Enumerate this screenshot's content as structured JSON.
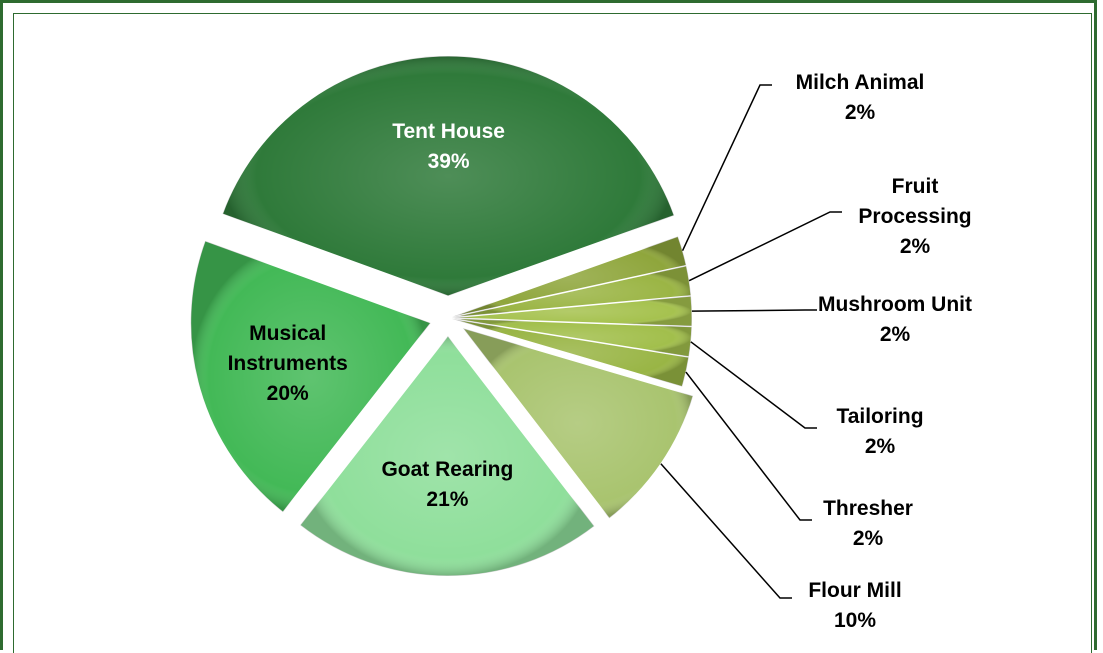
{
  "chart_data": {
    "type": "pie",
    "categories": [
      "Tent House",
      "Milch Animal",
      "Fruit Processing",
      "Mushroom Unit",
      "Tailoring",
      "Thresher",
      "Flour Mill",
      "Goat Rearing",
      "Musical Instruments"
    ],
    "values": [
      39,
      2,
      2,
      2,
      2,
      2,
      10,
      21,
      20
    ],
    "value_labels": [
      "39%",
      "2%",
      "2%",
      "2%",
      "2%",
      "2%",
      "10%",
      "21%",
      "20%"
    ],
    "colors": [
      "#2f7a3a",
      "#8fa63c",
      "#9bb545",
      "#a6c24f",
      "#a2bf4c",
      "#99b545",
      "#a9c46f",
      "#8fdf9b",
      "#43b957"
    ]
  }
}
